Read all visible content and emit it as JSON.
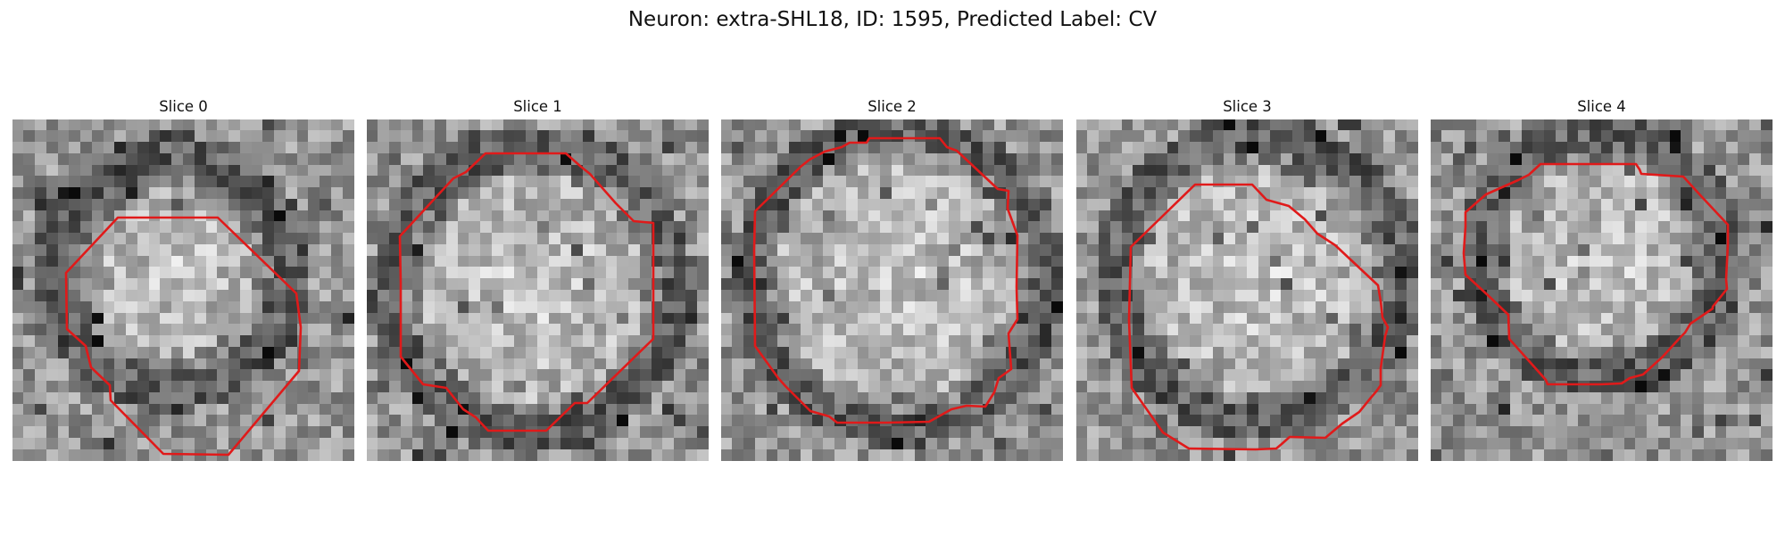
{
  "figure": {
    "title": "Neuron: extra-SHL18, ID: 1595, Predicted Label: CV",
    "contour_color": "#e01a1a"
  },
  "panels": [
    {
      "title": "Slice 0"
    },
    {
      "title": "Slice 1"
    },
    {
      "title": "Slice 2"
    },
    {
      "title": "Slice 3"
    },
    {
      "title": "Slice 4"
    }
  ]
}
